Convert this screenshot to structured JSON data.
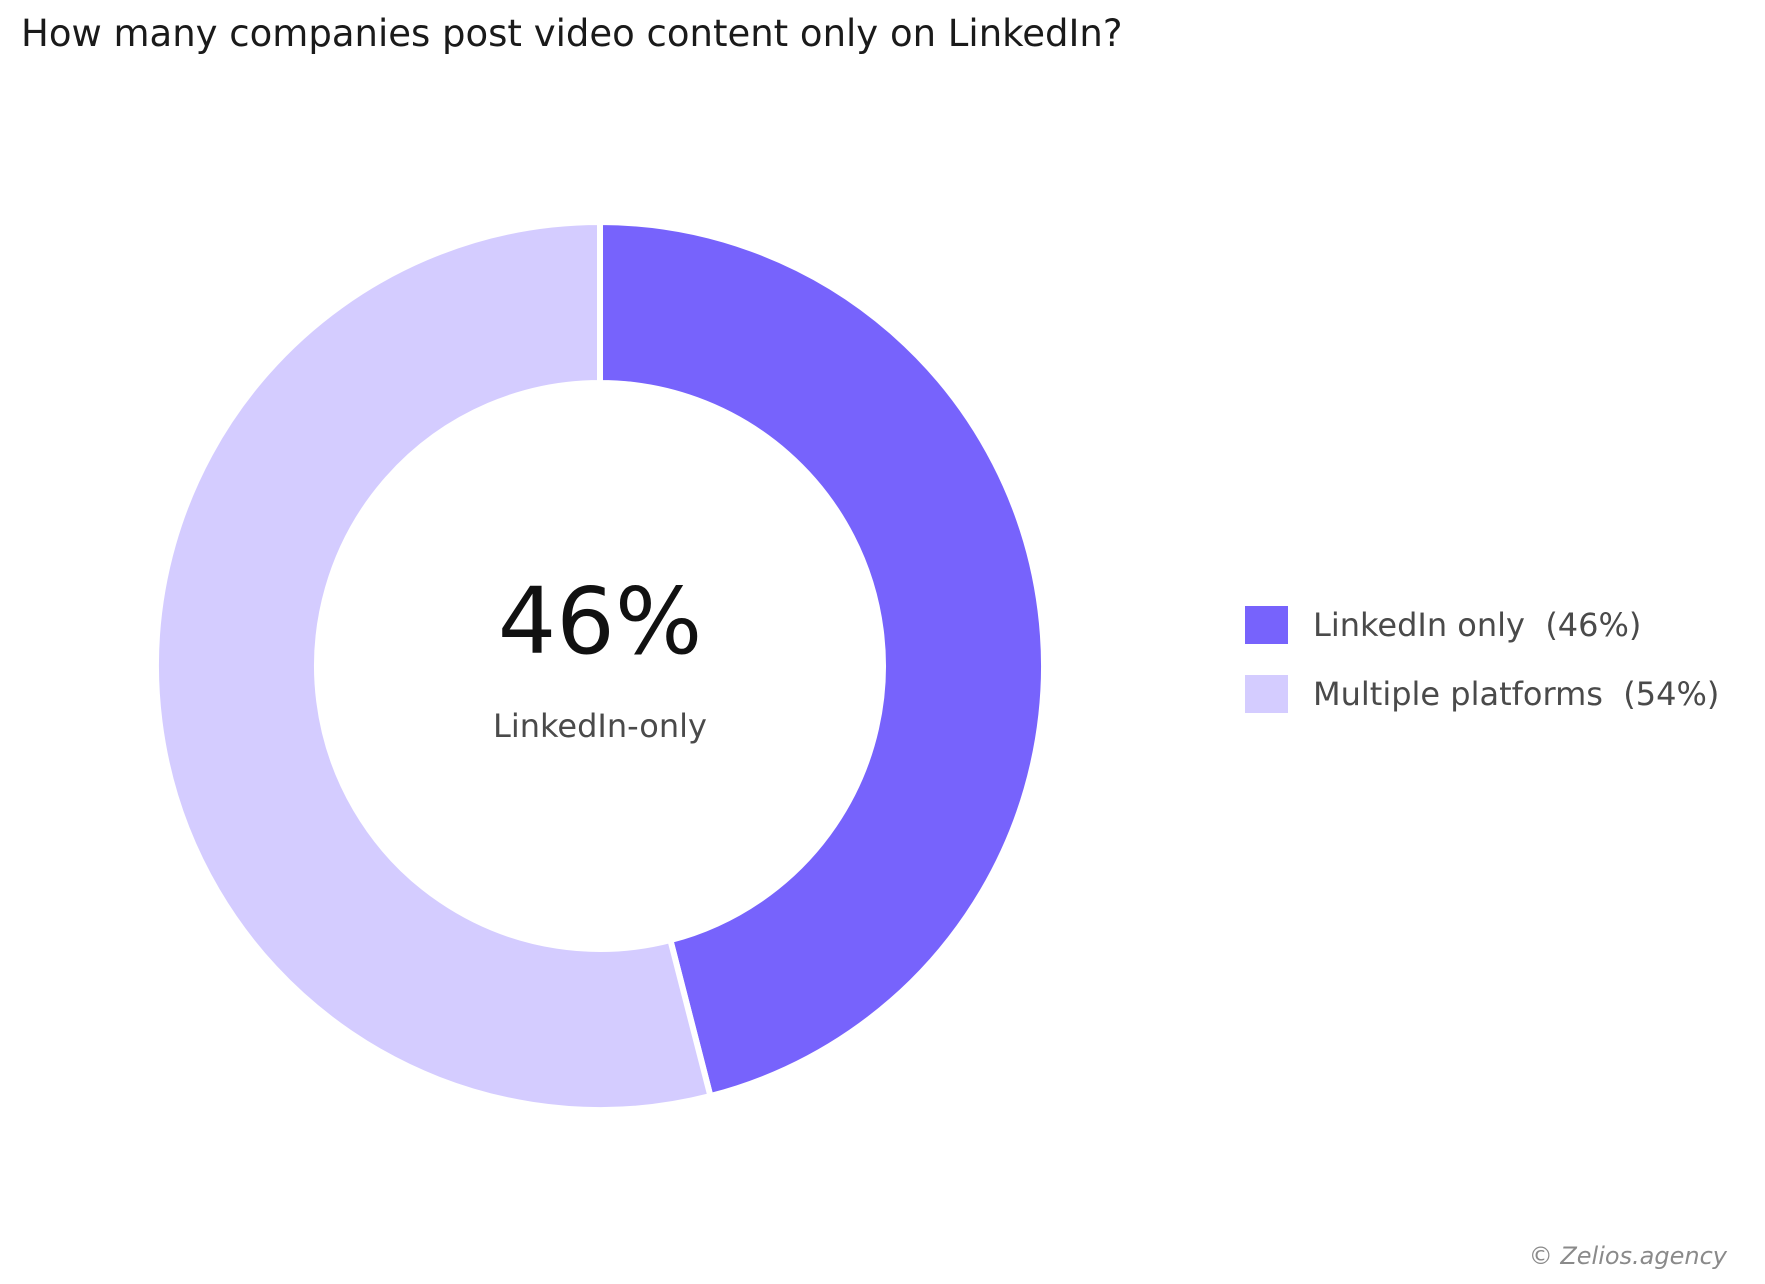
{
  "chart_data": {
    "type": "pie",
    "title": "How many companies post video content only on LinkedIn?",
    "slices": [
      {
        "label": "LinkedIn only",
        "value": 46,
        "color": "#7763fc"
      },
      {
        "label": "Multiple platforms",
        "value": 54,
        "color": "#d4ccff"
      }
    ],
    "center_value": "46%",
    "center_label": "LinkedIn-only",
    "legend": {
      "position": "right",
      "items": [
        "LinkedIn only  (46%)",
        "Multiple platforms  (54%)"
      ]
    },
    "start_angle": "12 o'clock",
    "direction": "clockwise"
  },
  "credit": "© Zelios.agency"
}
